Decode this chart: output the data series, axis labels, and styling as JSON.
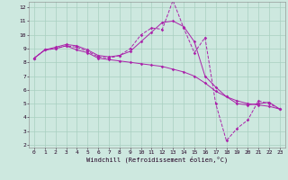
{
  "xlabel": "Windchill (Refroidissement éolien,°C)",
  "bg_color": "#cde8df",
  "grid_color": "#a8cfc0",
  "line_color": "#aa22aa",
  "xmin": 0,
  "xmax": 23,
  "ymin": 2,
  "ymax": 12,
  "x_ticks": [
    0,
    1,
    2,
    3,
    4,
    5,
    6,
    7,
    8,
    9,
    10,
    11,
    12,
    13,
    14,
    15,
    16,
    17,
    18,
    19,
    20,
    21,
    22,
    23
  ],
  "y_ticks": [
    2,
    3,
    4,
    5,
    6,
    7,
    8,
    9,
    10,
    11,
    12
  ],
  "line1_x": [
    0,
    1,
    2,
    3,
    4,
    5,
    6,
    7,
    8,
    9,
    10,
    11,
    12,
    13,
    14,
    15,
    16,
    17,
    18,
    19,
    20,
    21,
    22,
    23
  ],
  "line1_y": [
    8.3,
    8.9,
    9.0,
    9.2,
    9.1,
    8.8,
    8.4,
    8.3,
    8.5,
    9.0,
    10.0,
    10.5,
    10.4,
    12.5,
    10.5,
    8.7,
    9.8,
    5.0,
    2.3,
    3.2,
    3.8,
    5.2,
    5.0,
    4.6
  ],
  "line2_x": [
    0,
    1,
    2,
    3,
    4,
    5,
    6,
    7,
    8,
    9,
    10,
    11,
    12,
    13,
    14,
    15,
    16,
    17,
    18,
    19,
    20,
    21,
    22,
    23
  ],
  "line2_y": [
    8.3,
    8.9,
    9.0,
    9.2,
    8.9,
    8.7,
    8.3,
    8.2,
    8.1,
    8.0,
    7.9,
    7.8,
    7.7,
    7.5,
    7.3,
    7.0,
    6.5,
    5.9,
    5.5,
    5.2,
    5.0,
    4.9,
    4.8,
    4.6
  ],
  "line3_x": [
    0,
    1,
    2,
    3,
    4,
    5,
    6,
    7,
    8,
    9,
    10,
    11,
    12,
    13,
    14,
    15,
    16,
    17,
    18,
    19,
    20,
    21,
    22,
    23
  ],
  "line3_y": [
    8.3,
    8.9,
    9.1,
    9.3,
    9.2,
    8.9,
    8.5,
    8.4,
    8.5,
    8.8,
    9.5,
    10.2,
    10.9,
    11.0,
    10.6,
    9.5,
    7.0,
    6.2,
    5.5,
    5.0,
    4.9,
    5.0,
    5.1,
    4.6
  ],
  "tick_fontsize": 4.5,
  "xlabel_fontsize": 5.0
}
